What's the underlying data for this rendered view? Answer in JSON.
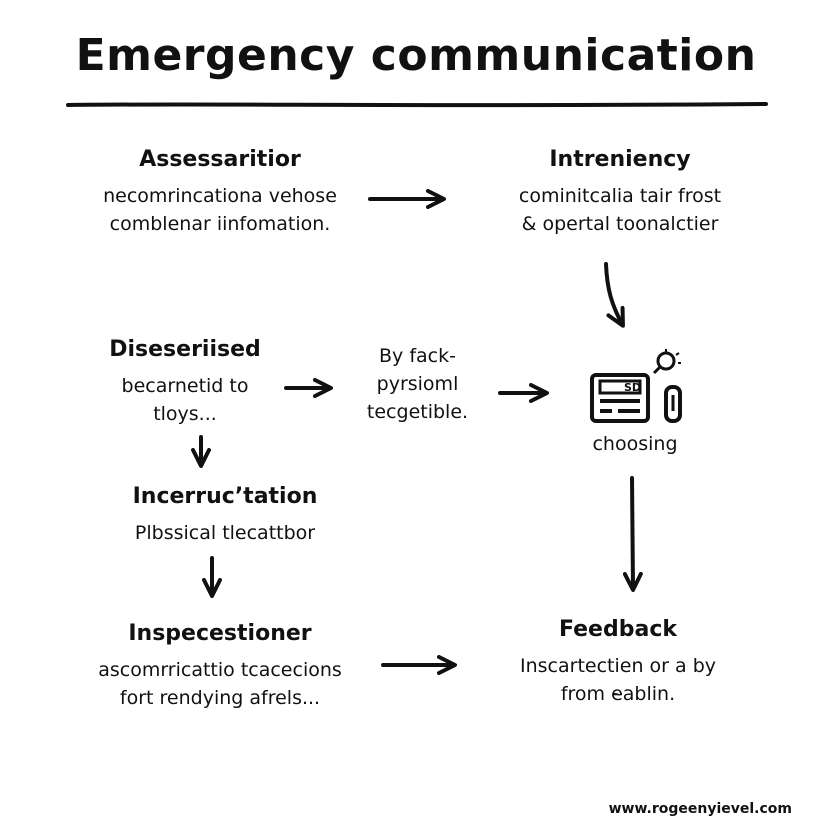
{
  "title": "Emergency communication",
  "nodes": {
    "assessment": {
      "head": "Assessaritior",
      "lines": [
        "necomrincationa vehose",
        "comblenar iinfomation."
      ]
    },
    "intreniency": {
      "head": "Intreniency",
      "lines": [
        "cominitcalia tair frost",
        "& opertal toonalctier"
      ]
    },
    "disesriised": {
      "head": "Diseseriised",
      "lines": [
        "becarnetid to",
        "tloys..."
      ]
    },
    "byfack": {
      "lines": [
        "By fack-",
        "pyrsioml",
        "tecgetible."
      ]
    },
    "device": {
      "label": "choosing",
      "screen_text": "SD",
      "icon": "radio-device-icon"
    },
    "incerructation": {
      "head": "Incerrucʼtation",
      "lines": [
        "Plbssical tlecattbor"
      ]
    },
    "inspecestioner": {
      "head": "Inspecestioner",
      "lines": [
        "ascomrricattio tcacecions",
        "fort rendying afrels..."
      ]
    },
    "feedback": {
      "head": "Feedback",
      "lines": [
        "Inscartectien or a by",
        "from e̴ablin."
      ]
    }
  },
  "footer": "www.rogeenyievel.com",
  "colors": {
    "ink": "#111111",
    "background": "#ffffff"
  }
}
